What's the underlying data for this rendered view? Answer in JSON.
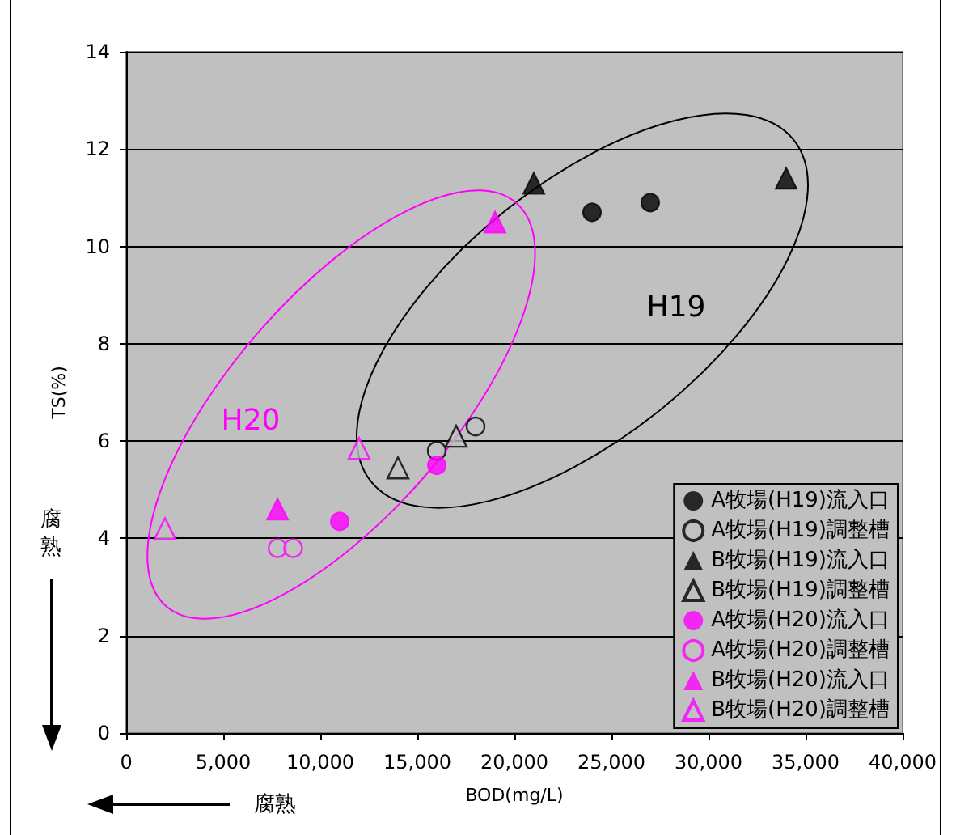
{
  "chart_data": {
    "type": "scatter",
    "xlabel": "BOD(mg/L)",
    "ylabel": "TS(%)",
    "xlim": [
      0,
      40000
    ],
    "xticks": [
      0,
      {
        "value": 5000,
        "label": "5,000"
      },
      {
        "value": 10000,
        "label": "10,000"
      },
      {
        "value": 15000,
        "label": "15,000"
      },
      {
        "value": 20000,
        "label": "20,000"
      },
      {
        "value": 25000,
        "label": "25,000"
      },
      {
        "value": 30000,
        "label": "30,000"
      },
      {
        "value": 35000,
        "label": "35,000"
      },
      {
        "value": 40000,
        "label": "40,000"
      }
    ],
    "ylim": [
      0,
      14
    ],
    "yticks": [
      0,
      2,
      4,
      6,
      8,
      10,
      12,
      14
    ],
    "grid": "y",
    "legend": "bottom right",
    "series": [
      {
        "name": "A牧場(H19)流入口",
        "color": "#000000",
        "marker": "circle",
        "x": [
          24000,
          27000
        ],
        "values": [
          10.7,
          10.9
        ]
      },
      {
        "name": "A牧場(H19)調整槽",
        "color": "#000000",
        "marker": "circle-open",
        "x": [
          16000,
          18000
        ],
        "values": [
          5.8,
          6.3
        ]
      },
      {
        "name": "B牧場(H19)流入口",
        "color": "#000000",
        "marker": "triangle",
        "x": [
          21000,
          34000
        ],
        "values": [
          11.3,
          11.4
        ]
      },
      {
        "name": "B牧場(H19)調整槽",
        "color": "#000000",
        "marker": "triangle-open",
        "x": [
          14000,
          17000
        ],
        "values": [
          5.45,
          6.1
        ]
      },
      {
        "name": "A牧場(H20)流入口",
        "color": "#ff00ff",
        "marker": "circle",
        "x": [
          16000,
          11000
        ],
        "values": [
          5.5,
          4.35
        ]
      },
      {
        "name": "A牧場(H20)調整槽",
        "color": "#ff00ff",
        "marker": "circle-open",
        "x": [
          7800,
          8600
        ],
        "values": [
          3.8,
          3.8
        ]
      },
      {
        "name": "B牧場(H20)流入口",
        "color": "#ff00ff",
        "marker": "triangle",
        "x": [
          7800,
          19000
        ],
        "values": [
          4.6,
          10.5
        ]
      },
      {
        "name": "B牧場(H20)調整槽",
        "color": "#ff00ff",
        "marker": "triangle-open",
        "x": [
          2000,
          12000
        ],
        "values": [
          4.2,
          5.85
        ]
      }
    ],
    "annotations": [
      "H19",
      "H20",
      "腐熟",
      "腐熟"
    ]
  }
}
